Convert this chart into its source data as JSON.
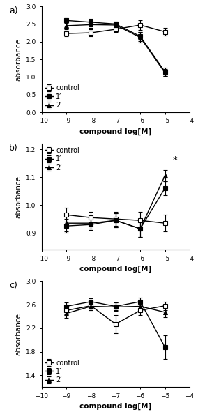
{
  "panels": [
    {
      "label": "a)",
      "ylabel": "absorbance",
      "xlabel": "compound log[M]",
      "xlim": [
        -10,
        -4
      ],
      "ylim": [
        0.0,
        3.0
      ],
      "yticks": [
        0.0,
        0.5,
        1.0,
        1.5,
        2.0,
        2.5,
        3.0
      ],
      "xticks": [
        -10,
        -9,
        -8,
        -7,
        -6,
        -5,
        -4
      ],
      "legend_loc": "lower left",
      "legend_bbox": null,
      "star_annotation": null,
      "series": [
        {
          "name": "control",
          "marker": "s",
          "fillstyle": "none",
          "x": [
            -9,
            -8,
            -7,
            -6,
            -5
          ],
          "y": [
            2.23,
            2.25,
            2.35,
            2.47,
            2.28
          ],
          "yerr": [
            0.08,
            0.1,
            0.08,
            0.13,
            0.1
          ]
        },
        {
          "name": "1′",
          "marker": "s",
          "fillstyle": "full",
          "x": [
            -9,
            -8,
            -7,
            -6,
            -5
          ],
          "y": [
            2.6,
            2.55,
            2.5,
            2.15,
            1.15
          ],
          "yerr": [
            0.07,
            0.1,
            0.07,
            0.13,
            0.12
          ]
        },
        {
          "name": "2′",
          "marker": "^",
          "fillstyle": "full",
          "x": [
            -9,
            -8,
            -7,
            -6,
            -5
          ],
          "y": [
            2.45,
            2.48,
            2.47,
            2.12,
            1.12
          ],
          "yerr": [
            0.1,
            0.1,
            0.08,
            0.15,
            0.1
          ]
        }
      ]
    },
    {
      "label": "b)",
      "ylabel": "absorbance",
      "xlabel": "compound log[M]",
      "xlim": [
        -10,
        -4
      ],
      "ylim": [
        0.84,
        1.22
      ],
      "yticks": [
        0.9,
        1.0,
        1.1,
        1.2
      ],
      "xticks": [
        -10,
        -9,
        -8,
        -7,
        -6,
        -5,
        -4
      ],
      "legend_loc": "upper left",
      "legend_bbox": null,
      "star_annotation": "*",
      "star_x": -4.6,
      "star_y": 1.145,
      "series": [
        {
          "name": "control",
          "marker": "s",
          "fillstyle": "none",
          "x": [
            -9,
            -8,
            -7,
            -6,
            -5
          ],
          "y": [
            0.965,
            0.955,
            0.95,
            0.945,
            0.935
          ],
          "yerr": [
            0.025,
            0.02,
            0.025,
            0.03,
            0.03
          ]
        },
        {
          "name": "1′",
          "marker": "s",
          "fillstyle": "full",
          "x": [
            -9,
            -8,
            -7,
            -6,
            -5
          ],
          "y": [
            0.925,
            0.93,
            0.945,
            0.915,
            1.06
          ],
          "yerr": [
            0.025,
            0.02,
            0.025,
            0.03,
            0.025
          ]
        },
        {
          "name": "2′",
          "marker": "^",
          "fillstyle": "full",
          "x": [
            -9,
            -8,
            -7,
            -6,
            -5
          ],
          "y": [
            0.935,
            0.935,
            0.945,
            0.915,
            1.105
          ],
          "yerr": [
            0.03,
            0.02,
            0.025,
            0.03,
            0.02
          ]
        }
      ]
    },
    {
      "label": "c)",
      "ylabel": "absorbance",
      "xlabel": "compound log[M]",
      "xlim": [
        -10,
        -4
      ],
      "ylim": [
        1.2,
        3.0
      ],
      "yticks": [
        1.4,
        1.8,
        2.2,
        2.6,
        3.0
      ],
      "xticks": [
        -10,
        -9,
        -8,
        -7,
        -6,
        -5,
        -4
      ],
      "legend_loc": "lower left",
      "legend_bbox": null,
      "star_annotation": null,
      "series": [
        {
          "name": "control",
          "marker": "s",
          "fillstyle": "none",
          "x": [
            -9,
            -8,
            -7,
            -6,
            -5
          ],
          "y": [
            2.5,
            2.58,
            2.27,
            2.5,
            2.58
          ],
          "yerr": [
            0.06,
            0.08,
            0.15,
            0.08,
            0.07
          ]
        },
        {
          "name": "1′",
          "marker": "s",
          "fillstyle": "full",
          "x": [
            -9,
            -8,
            -7,
            -6,
            -5
          ],
          "y": [
            2.57,
            2.65,
            2.57,
            2.65,
            1.88
          ],
          "yerr": [
            0.06,
            0.06,
            0.07,
            0.07,
            0.2
          ]
        },
        {
          "name": "2′",
          "marker": "^",
          "fillstyle": "full",
          "x": [
            -9,
            -8,
            -7,
            -6,
            -5
          ],
          "y": [
            2.45,
            2.57,
            2.56,
            2.57,
            2.47
          ],
          "yerr": [
            0.07,
            0.07,
            0.07,
            0.08,
            0.08
          ]
        }
      ]
    }
  ],
  "line_color": "black",
  "marker_size": 4.5,
  "capsize": 2.5,
  "linewidth": 1.0,
  "elinewidth": 0.8,
  "font_size": 7.0,
  "label_font_size": 7.5,
  "tick_font_size": 6.5
}
